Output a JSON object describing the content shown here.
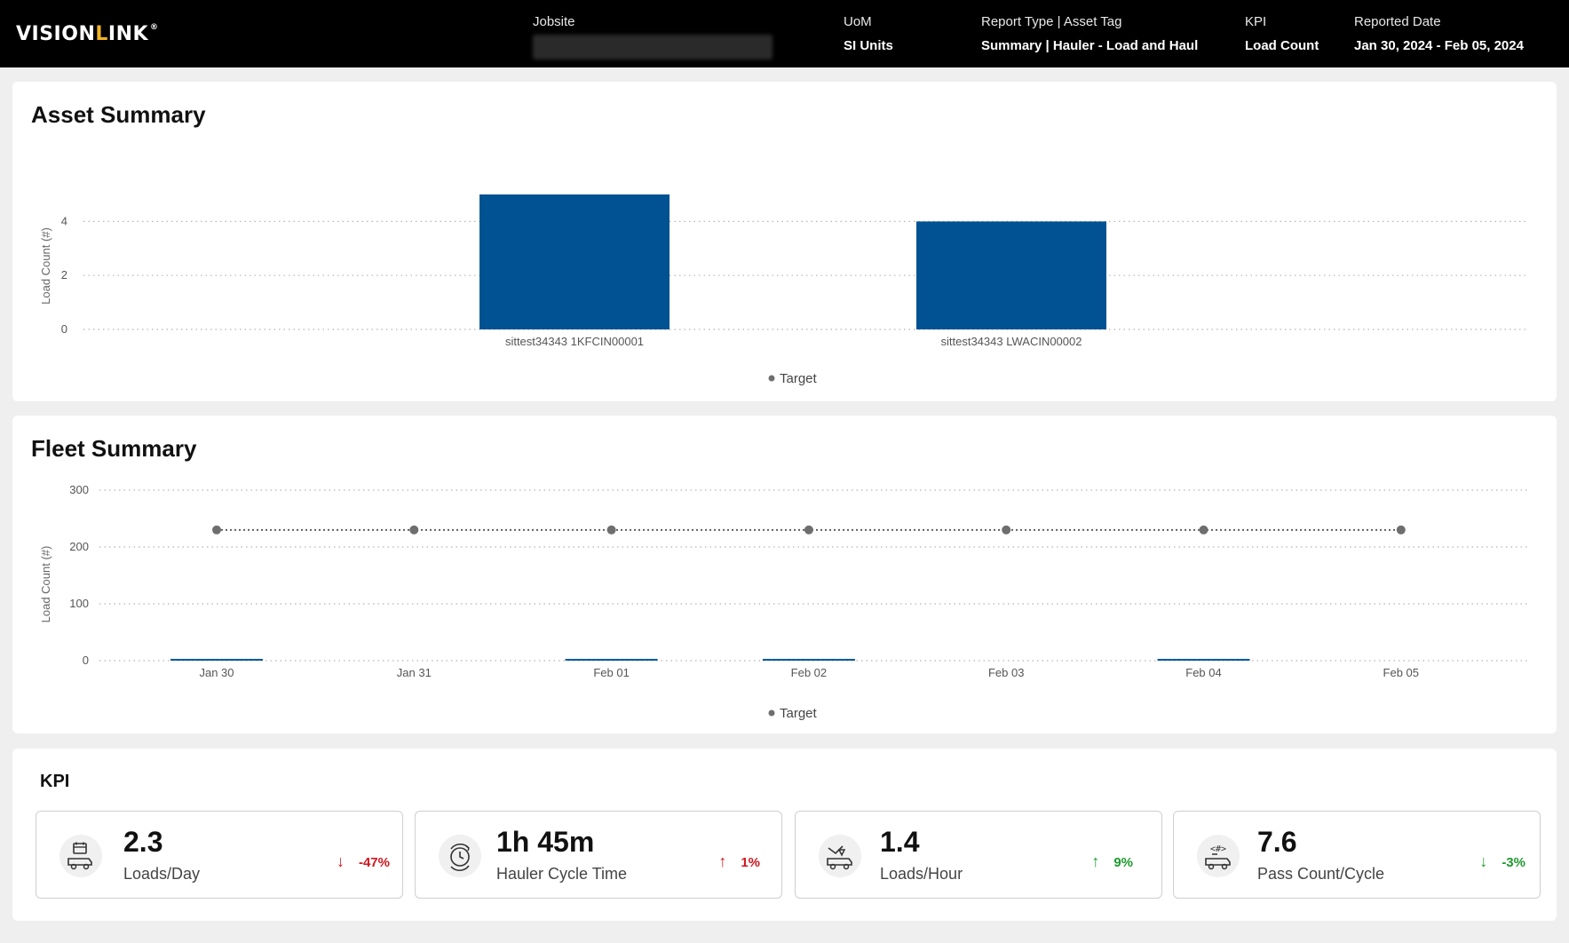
{
  "header": {
    "logo_prefix": "VISION",
    "logo_accent": "L",
    "logo_suffix": "INK",
    "logo_reg": "®",
    "jobsite_label": "Jobsite",
    "uom_label": "UoM",
    "uom_value": "SI Units",
    "report_label": "Report Type | Asset Tag",
    "report_value": "Summary | Hauler - Load and Haul",
    "kpi_label": "KPI",
    "kpi_value": "Load Count",
    "date_label": "Reported Date",
    "date_value": "Jan 30, 2024 - Feb 05, 2024"
  },
  "asset_summary": {
    "title": "Asset Summary",
    "legend": "Target"
  },
  "fleet_summary": {
    "title": "Fleet Summary",
    "legend": "Target"
  },
  "kpi": {
    "title": "KPI",
    "cards": [
      {
        "value": "2.3",
        "label": "Loads/Day",
        "change": "-47%",
        "direction": "down",
        "status": "neg",
        "icon": "calendar-hauler-icon"
      },
      {
        "value": "1h 45m",
        "label": "Hauler Cycle Time",
        "change": "1%",
        "direction": "up",
        "status": "neg",
        "icon": "cycle-clock-icon"
      },
      {
        "value": "1.4",
        "label": "Loads/Hour",
        "change": "9%",
        "direction": "up",
        "status": "pos",
        "icon": "excavator-load-icon"
      },
      {
        "value": "7.6",
        "label": "Pass Count/Cycle",
        "change": "-3%",
        "direction": "down",
        "status": "pos",
        "icon": "pass-count-icon"
      }
    ]
  },
  "colors": {
    "bar": "#005293",
    "target": "#6e6e6e",
    "negative": "#d0161e",
    "positive": "#1e9a2e"
  },
  "chart_data": [
    {
      "type": "bar",
      "title": "Asset Summary",
      "ylabel": "Load Count (#)",
      "xlabel": "",
      "categories": [
        "sittest34343 1KFCIN00001",
        "sittest34343 LWACIN00002"
      ],
      "series": [
        {
          "values": [
            5,
            4
          ]
        }
      ],
      "legend": [
        "Target"
      ],
      "yticks": [
        0,
        2,
        4
      ],
      "ylim": [
        0,
        5.2
      ],
      "grid": true,
      "legend_position": "bottom-center"
    },
    {
      "type": "bar",
      "title": "Fleet Summary",
      "ylabel": "Load Count (#)",
      "xlabel": "",
      "categories": [
        "Jan 30",
        "Jan 31",
        "Feb 01",
        "Feb 02",
        "Feb 03",
        "Feb 04",
        "Feb 05"
      ],
      "series": [
        {
          "values": [
            3,
            0,
            3,
            3,
            0,
            3,
            0
          ]
        },
        {
          "name": "Target",
          "type": "line",
          "values": [
            230,
            230,
            230,
            230,
            230,
            230,
            230
          ]
        }
      ],
      "yticks": [
        0,
        100,
        200,
        300
      ],
      "ylim": [
        0,
        300
      ],
      "grid": true,
      "legend_position": "bottom-center"
    }
  ]
}
